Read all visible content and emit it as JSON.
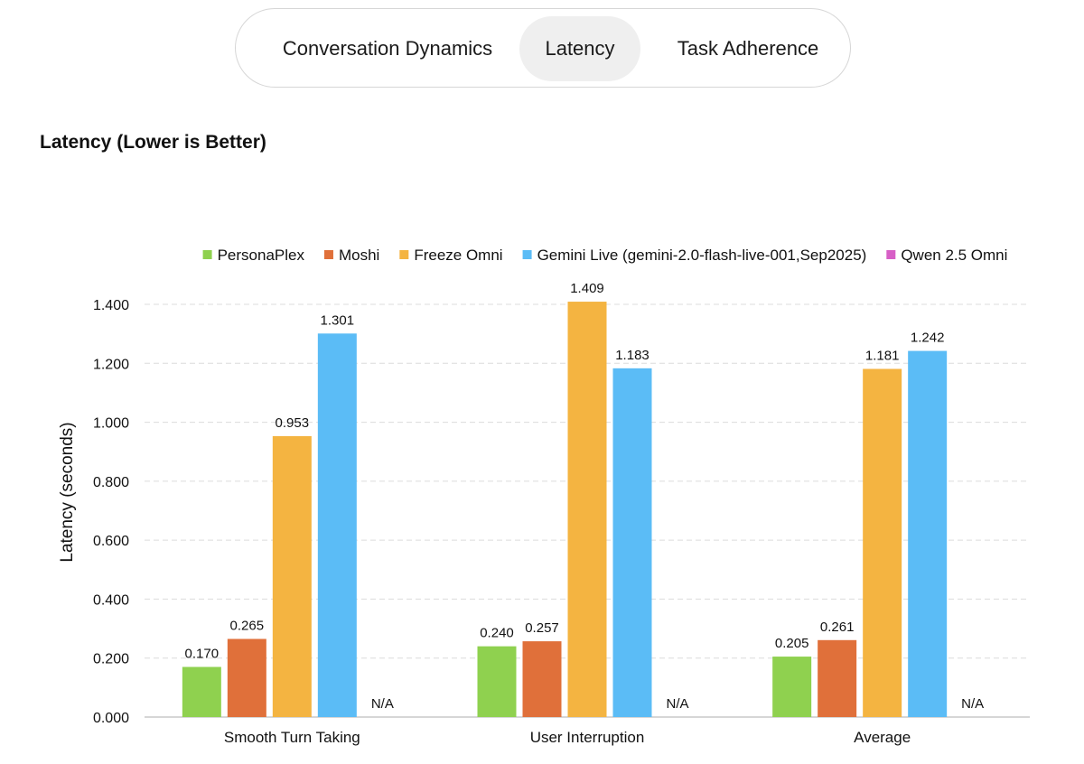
{
  "tabs": {
    "items": [
      {
        "label": "Conversation Dynamics",
        "active": false
      },
      {
        "label": "Latency",
        "active": true
      },
      {
        "label": "Task Adherence",
        "active": false
      }
    ]
  },
  "section_title": "Latency (Lower is Better)",
  "chart_data": {
    "type": "bar",
    "title": "Latency (Lower is Better)",
    "xlabel": "",
    "ylabel": "Latency (seconds)",
    "ylim": [
      0,
      1.4
    ],
    "yticks": [
      "0.000",
      "0.200",
      "0.400",
      "0.600",
      "0.800",
      "1.000",
      "1.200",
      "1.400"
    ],
    "categories": [
      "Smooth Turn Taking",
      "User Interruption",
      "Average"
    ],
    "grid": true,
    "legend_position": "top",
    "series": [
      {
        "name": "PersonaPlex",
        "color": "#8fd14f",
        "values": [
          0.17,
          0.24,
          0.205
        ],
        "labels": [
          "0.170",
          "0.240",
          "0.205"
        ]
      },
      {
        "name": "Moshi",
        "color": "#e0703a",
        "values": [
          0.265,
          0.257,
          0.261
        ],
        "labels": [
          "0.265",
          "0.257",
          "0.261"
        ]
      },
      {
        "name": "Freeze Omni",
        "color": "#f4b441",
        "values": [
          0.953,
          1.409,
          1.181
        ],
        "labels": [
          "0.953",
          "1.409",
          "1.181"
        ]
      },
      {
        "name": "Gemini Live (gemini-2.0-flash-live-001,Sep2025)",
        "color": "#5bbcf6",
        "values": [
          1.301,
          1.183,
          1.242
        ],
        "labels": [
          "1.301",
          "1.183",
          "1.242"
        ]
      },
      {
        "name": "Qwen 2.5 Omni",
        "color": "#d75fc6",
        "values": [
          null,
          null,
          null
        ],
        "labels": [
          "N/A",
          "N/A",
          "N/A"
        ]
      }
    ]
  }
}
